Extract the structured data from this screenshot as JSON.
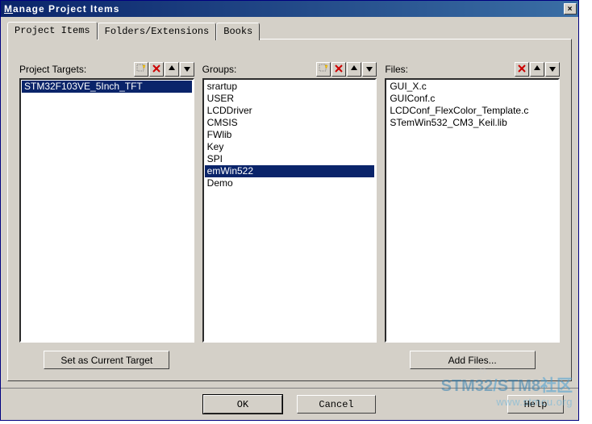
{
  "window": {
    "title_raw": "Manage Project Items",
    "close_label": "×"
  },
  "tabs": [
    {
      "label": "Project Items",
      "active": true
    },
    {
      "label": "Folders/Extensions",
      "active": false
    },
    {
      "label": "Books",
      "active": false
    }
  ],
  "columns": {
    "targets": {
      "label": "Project Targets:",
      "toolbar": [
        "new",
        "delete",
        "up",
        "down"
      ],
      "items": [
        {
          "text": "STM32F103VE_5Inch_TFT",
          "selected": true
        }
      ],
      "bottom_button": "Set as Current Target"
    },
    "groups": {
      "label": "Groups:",
      "toolbar": [
        "new",
        "delete",
        "up",
        "down"
      ],
      "items": [
        {
          "text": "srartup",
          "selected": false
        },
        {
          "text": "USER",
          "selected": false
        },
        {
          "text": "LCDDriver",
          "selected": false
        },
        {
          "text": "CMSIS",
          "selected": false
        },
        {
          "text": "FWlib",
          "selected": false
        },
        {
          "text": "Key",
          "selected": false
        },
        {
          "text": "SPI",
          "selected": false
        },
        {
          "text": "emWin522",
          "selected": true
        },
        {
          "text": "Demo",
          "selected": false
        }
      ],
      "bottom_button": null
    },
    "files": {
      "label": "Files:",
      "toolbar": [
        "delete",
        "up",
        "down"
      ],
      "items": [
        {
          "text": "GUI_X.c",
          "selected": false
        },
        {
          "text": "GUIConf.c",
          "selected": false
        },
        {
          "text": "LCDConf_FlexColor_Template.c",
          "selected": false
        },
        {
          "text": "STemWin532_CM3_Keil.lib",
          "selected": false
        }
      ],
      "bottom_button": "Add Files..."
    }
  },
  "dialog_buttons": {
    "ok": "OK",
    "cancel": "Cancel",
    "help": "Help"
  },
  "colors": {
    "selection_bg": "#0a246a",
    "selection_fg": "#ffffff",
    "face": "#d4d0c8",
    "titlebar_left": "#0a246a",
    "titlebar_right": "#3a6ea5"
  },
  "watermark": {
    "line1_a": "STM32",
    "line1_sep": "/",
    "line1_b": "STM8",
    "line1_suffix": "社区",
    "line2": "www.stmcu.org"
  }
}
